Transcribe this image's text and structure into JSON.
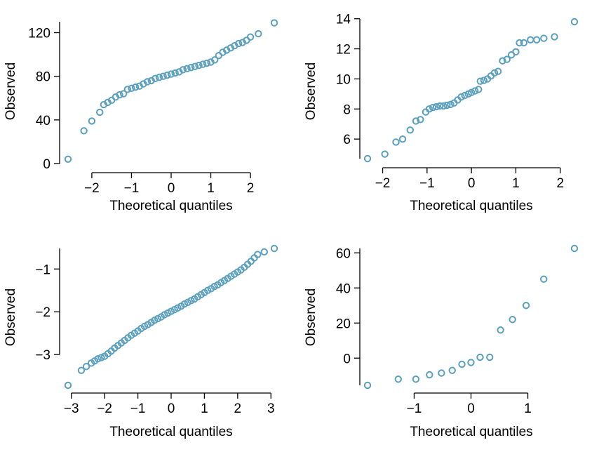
{
  "colors": {
    "point": "#5a9fbd"
  },
  "chart_data": [
    {
      "type": "scatter",
      "xlabel": "Theoretical quantiles",
      "ylabel": "Observed",
      "xlim": [
        -2.6,
        2.6
      ],
      "ylim": [
        0,
        130
      ],
      "xticks": [
        -2,
        -1,
        0,
        1,
        2
      ],
      "xtick_labels": [
        "−2",
        "−1",
        "0",
        "1",
        "2"
      ],
      "yticks": [
        0,
        40,
        80,
        120
      ],
      "ytick_labels": [
        "0",
        "40",
        "80",
        "120"
      ],
      "grid": false,
      "series": [
        {
          "points": [
            [
              -2.6,
              4
            ],
            [
              -2.2,
              30
            ],
            [
              -2.0,
              39
            ],
            [
              -1.8,
              47
            ],
            [
              -1.7,
              54
            ],
            [
              -1.6,
              56
            ],
            [
              -1.5,
              58
            ],
            [
              -1.4,
              61
            ],
            [
              -1.3,
              63
            ],
            [
              -1.2,
              64
            ],
            [
              -1.1,
              68
            ],
            [
              -1.0,
              69
            ],
            [
              -0.9,
              70
            ],
            [
              -0.8,
              71
            ],
            [
              -0.7,
              73
            ],
            [
              -0.6,
              75
            ],
            [
              -0.5,
              76
            ],
            [
              -0.4,
              78
            ],
            [
              -0.3,
              79
            ],
            [
              -0.2,
              80
            ],
            [
              -0.1,
              81
            ],
            [
              0.0,
              82
            ],
            [
              0.1,
              83
            ],
            [
              0.2,
              84
            ],
            [
              0.3,
              86
            ],
            [
              0.4,
              87
            ],
            [
              0.5,
              88
            ],
            [
              0.6,
              89
            ],
            [
              0.7,
              90
            ],
            [
              0.8,
              91
            ],
            [
              0.9,
              92
            ],
            [
              1.0,
              93
            ],
            [
              1.1,
              95
            ],
            [
              1.2,
              99
            ],
            [
              1.3,
              102
            ],
            [
              1.4,
              104
            ],
            [
              1.5,
              106
            ],
            [
              1.6,
              108
            ],
            [
              1.7,
              110
            ],
            [
              1.8,
              111
            ],
            [
              1.9,
              113
            ],
            [
              2.0,
              116
            ],
            [
              2.2,
              119
            ],
            [
              2.6,
              129
            ]
          ]
        }
      ]
    },
    {
      "type": "scatter",
      "xlabel": "Theoretical quantiles",
      "ylabel": "Observed",
      "xlim": [
        -2.34,
        2.32
      ],
      "ylim": [
        4.7,
        13.8
      ],
      "xticks": [
        -2,
        -1,
        0,
        1,
        2
      ],
      "xtick_labels": [
        "−2",
        "−1",
        "0",
        "1",
        "2"
      ],
      "yticks": [
        6,
        8,
        10,
        12,
        14
      ],
      "ytick_labels": [
        "6",
        "8",
        "10",
        "12",
        "14"
      ],
      "grid": false,
      "series": [
        {
          "points": [
            [
              -2.34,
              4.7
            ],
            [
              -1.95,
              5.0
            ],
            [
              -1.7,
              5.8
            ],
            [
              -1.55,
              6.0
            ],
            [
              -1.38,
              6.6
            ],
            [
              -1.25,
              7.2
            ],
            [
              -1.15,
              7.3
            ],
            [
              -1.03,
              7.8
            ],
            [
              -0.95,
              8.0
            ],
            [
              -0.87,
              8.1
            ],
            [
              -0.79,
              8.15
            ],
            [
              -0.71,
              8.2
            ],
            [
              -0.63,
              8.2
            ],
            [
              -0.55,
              8.25
            ],
            [
              -0.47,
              8.3
            ],
            [
              -0.39,
              8.4
            ],
            [
              -0.31,
              8.6
            ],
            [
              -0.23,
              8.8
            ],
            [
              -0.15,
              8.9
            ],
            [
              -0.07,
              9.0
            ],
            [
              0.0,
              9.1
            ],
            [
              0.08,
              9.2
            ],
            [
              0.16,
              9.3
            ],
            [
              0.2,
              9.85
            ],
            [
              0.28,
              9.9
            ],
            [
              0.36,
              10.0
            ],
            [
              0.44,
              10.2
            ],
            [
              0.52,
              10.4
            ],
            [
              0.6,
              10.5
            ],
            [
              0.7,
              11.2
            ],
            [
              0.8,
              11.3
            ],
            [
              0.9,
              11.6
            ],
            [
              1.0,
              11.8
            ],
            [
              1.08,
              12.4
            ],
            [
              1.18,
              12.4
            ],
            [
              1.33,
              12.6
            ],
            [
              1.47,
              12.6
            ],
            [
              1.63,
              12.7
            ],
            [
              1.87,
              12.8
            ],
            [
              2.32,
              13.8
            ]
          ]
        }
      ]
    },
    {
      "type": "scatter",
      "xlabel": "Theoretical quantiles",
      "ylabel": "Observed",
      "xlim": [
        -3.1,
        3.1
      ],
      "ylim": [
        -3.72,
        -0.52
      ],
      "xticks": [
        -3,
        -2,
        -1,
        0,
        1,
        2,
        3
      ],
      "xtick_labels": [
        "−3",
        "−2",
        "−1",
        "0",
        "1",
        "2",
        "3"
      ],
      "yticks": [
        -3,
        -2,
        -1
      ],
      "ytick_labels": [
        "−3",
        "−2",
        "−1"
      ],
      "grid": false,
      "series": [
        {
          "points": [
            [
              -3.1,
              -3.72
            ],
            [
              -2.7,
              -3.37
            ],
            [
              -2.55,
              -3.28
            ],
            [
              -2.4,
              -3.2
            ],
            [
              -2.3,
              -3.15
            ],
            [
              -2.2,
              -3.1
            ],
            [
              -2.1,
              -3.07
            ],
            [
              -2.0,
              -3.04
            ],
            [
              -1.9,
              -2.98
            ],
            [
              -1.8,
              -2.92
            ],
            [
              -1.7,
              -2.85
            ],
            [
              -1.6,
              -2.79
            ],
            [
              -1.5,
              -2.73
            ],
            [
              -1.4,
              -2.67
            ],
            [
              -1.3,
              -2.61
            ],
            [
              -1.2,
              -2.55
            ],
            [
              -1.1,
              -2.5
            ],
            [
              -1.0,
              -2.45
            ],
            [
              -0.9,
              -2.39
            ],
            [
              -0.8,
              -2.34
            ],
            [
              -0.7,
              -2.3
            ],
            [
              -0.6,
              -2.25
            ],
            [
              -0.5,
              -2.2
            ],
            [
              -0.4,
              -2.16
            ],
            [
              -0.3,
              -2.12
            ],
            [
              -0.2,
              -2.07
            ],
            [
              -0.1,
              -2.03
            ],
            [
              0.0,
              -1.99
            ],
            [
              0.1,
              -1.95
            ],
            [
              0.2,
              -1.91
            ],
            [
              0.3,
              -1.87
            ],
            [
              0.4,
              -1.82
            ],
            [
              0.5,
              -1.78
            ],
            [
              0.6,
              -1.74
            ],
            [
              0.7,
              -1.7
            ],
            [
              0.8,
              -1.65
            ],
            [
              0.9,
              -1.6
            ],
            [
              1.0,
              -1.55
            ],
            [
              1.1,
              -1.5
            ],
            [
              1.2,
              -1.46
            ],
            [
              1.3,
              -1.41
            ],
            [
              1.4,
              -1.37
            ],
            [
              1.5,
              -1.32
            ],
            [
              1.6,
              -1.27
            ],
            [
              1.7,
              -1.22
            ],
            [
              1.8,
              -1.17
            ],
            [
              1.9,
              -1.12
            ],
            [
              2.0,
              -1.07
            ],
            [
              2.1,
              -1.02
            ],
            [
              2.2,
              -0.96
            ],
            [
              2.3,
              -0.89
            ],
            [
              2.4,
              -0.82
            ],
            [
              2.5,
              -0.74
            ],
            [
              2.6,
              -0.66
            ],
            [
              2.8,
              -0.6
            ],
            [
              3.1,
              -0.52
            ]
          ]
        }
      ]
    },
    {
      "type": "scatter",
      "xlabel": "Theoretical quantiles",
      "ylabel": "Observed",
      "xlim": [
        -1.82,
        1.82
      ],
      "ylim": [
        -15.5,
        62.5
      ],
      "xticks": [
        -1,
        0,
        1
      ],
      "xtick_labels": [
        "−1",
        "0",
        "1"
      ],
      "yticks": [
        0,
        20,
        40,
        60
      ],
      "ytick_labels": [
        "0",
        "20",
        "40",
        "60"
      ],
      "grid": false,
      "series": [
        {
          "points": [
            [
              -1.82,
              -15.5
            ],
            [
              -1.28,
              -12
            ],
            [
              -0.97,
              -12
            ],
            [
              -0.73,
              -9.5
            ],
            [
              -0.52,
              -8.5
            ],
            [
              -0.33,
              -7
            ],
            [
              -0.16,
              -3.5
            ],
            [
              0.0,
              -2.5
            ],
            [
              0.16,
              0.5
            ],
            [
              0.33,
              0.5
            ],
            [
              0.52,
              16
            ],
            [
              0.73,
              22
            ],
            [
              0.97,
              30
            ],
            [
              1.28,
              45
            ],
            [
              1.82,
              62.5
            ]
          ]
        }
      ]
    }
  ]
}
